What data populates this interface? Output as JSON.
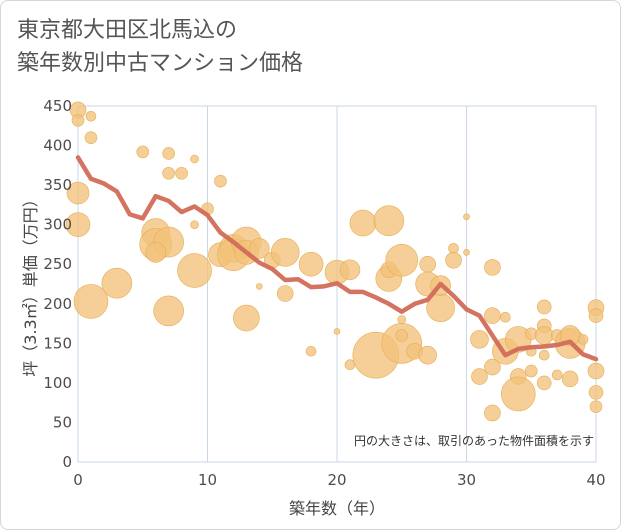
{
  "title": {
    "line1": "東京都大田区北馬込の",
    "line2": "築年数別中古マンション価格"
  },
  "chart_data": {
    "type": "scatter",
    "xlabel": "築年数（年）",
    "ylabel": "坪（3.3㎡）単価（万円）",
    "xlim": [
      0,
      40
    ],
    "ylim": [
      0,
      450
    ],
    "xticks": [
      0,
      10,
      20,
      30,
      40
    ],
    "yticks": [
      0,
      50,
      100,
      150,
      200,
      250,
      300,
      350,
      400,
      450
    ],
    "grid": true,
    "note": "円の大きさは、取引のあった物件面積を示す",
    "colors": {
      "bubble": "#f2c27a",
      "bubble_edge": "#e5ad55",
      "line": "#d26b57",
      "grid": "#cad7e6"
    },
    "bubbles": [
      {
        "x": 0,
        "y": 445,
        "size": 8
      },
      {
        "x": 0,
        "y": 432,
        "size": 6
      },
      {
        "x": 1,
        "y": 437,
        "size": 5
      },
      {
        "x": 1,
        "y": 410,
        "size": 6
      },
      {
        "x": 0,
        "y": 340,
        "size": 11
      },
      {
        "x": 0,
        "y": 300,
        "size": 12
      },
      {
        "x": 1,
        "y": 203,
        "size": 17
      },
      {
        "x": 3,
        "y": 226,
        "size": 15
      },
      {
        "x": 5,
        "y": 392,
        "size": 6
      },
      {
        "x": 7,
        "y": 390,
        "size": 6
      },
      {
        "x": 7,
        "y": 365,
        "size": 6
      },
      {
        "x": 8,
        "y": 365,
        "size": 6
      },
      {
        "x": 9,
        "y": 383,
        "size": 4
      },
      {
        "x": 6,
        "y": 290,
        "size": 14
      },
      {
        "x": 6,
        "y": 275,
        "size": 16
      },
      {
        "x": 7,
        "y": 278,
        "size": 15
      },
      {
        "x": 6,
        "y": 265,
        "size": 10
      },
      {
        "x": 7,
        "y": 191,
        "size": 15
      },
      {
        "x": 9,
        "y": 242,
        "size": 17
      },
      {
        "x": 9,
        "y": 300,
        "size": 4
      },
      {
        "x": 10,
        "y": 320,
        "size": 6
      },
      {
        "x": 11,
        "y": 355,
        "size": 6
      },
      {
        "x": 11,
        "y": 262,
        "size": 12
      },
      {
        "x": 12,
        "y": 270,
        "size": 14
      },
      {
        "x": 12,
        "y": 262,
        "size": 16
      },
      {
        "x": 13,
        "y": 278,
        "size": 15
      },
      {
        "x": 13,
        "y": 265,
        "size": 12
      },
      {
        "x": 13,
        "y": 182,
        "size": 13
      },
      {
        "x": 14,
        "y": 270,
        "size": 10
      },
      {
        "x": 14,
        "y": 222,
        "size": 3
      },
      {
        "x": 15,
        "y": 255,
        "size": 8
      },
      {
        "x": 16,
        "y": 265,
        "size": 14
      },
      {
        "x": 16,
        "y": 213,
        "size": 8
      },
      {
        "x": 18,
        "y": 250,
        "size": 12
      },
      {
        "x": 18,
        "y": 140,
        "size": 5
      },
      {
        "x": 20,
        "y": 240,
        "size": 12
      },
      {
        "x": 20,
        "y": 165,
        "size": 3
      },
      {
        "x": 21,
        "y": 243,
        "size": 10
      },
      {
        "x": 21,
        "y": 123,
        "size": 5
      },
      {
        "x": 22,
        "y": 302,
        "size": 13
      },
      {
        "x": 23,
        "y": 135,
        "size": 23
      },
      {
        "x": 24,
        "y": 305,
        "size": 15
      },
      {
        "x": 24,
        "y": 232,
        "size": 13
      },
      {
        "x": 24,
        "y": 243,
        "size": 8
      },
      {
        "x": 25,
        "y": 255,
        "size": 16
      },
      {
        "x": 25,
        "y": 150,
        "size": 20
      },
      {
        "x": 25,
        "y": 160,
        "size": 6
      },
      {
        "x": 25,
        "y": 180,
        "size": 4
      },
      {
        "x": 26,
        "y": 140,
        "size": 8
      },
      {
        "x": 27,
        "y": 250,
        "size": 8
      },
      {
        "x": 27,
        "y": 225,
        "size": 12
      },
      {
        "x": 27,
        "y": 135,
        "size": 9
      },
      {
        "x": 28,
        "y": 195,
        "size": 14
      },
      {
        "x": 28,
        "y": 223,
        "size": 10
      },
      {
        "x": 29,
        "y": 270,
        "size": 5
      },
      {
        "x": 29,
        "y": 255,
        "size": 8
      },
      {
        "x": 30,
        "y": 310,
        "size": 3
      },
      {
        "x": 30,
        "y": 265,
        "size": 3
      },
      {
        "x": 31,
        "y": 155,
        "size": 9
      },
      {
        "x": 31,
        "y": 108,
        "size": 8
      },
      {
        "x": 32,
        "y": 246,
        "size": 8
      },
      {
        "x": 32,
        "y": 185,
        "size": 8
      },
      {
        "x": 32,
        "y": 120,
        "size": 8
      },
      {
        "x": 32,
        "y": 62,
        "size": 8
      },
      {
        "x": 33,
        "y": 183,
        "size": 5
      },
      {
        "x": 33,
        "y": 140,
        "size": 13
      },
      {
        "x": 34,
        "y": 155,
        "size": 13
      },
      {
        "x": 34,
        "y": 108,
        "size": 8
      },
      {
        "x": 34,
        "y": 86,
        "size": 17
      },
      {
        "x": 35,
        "y": 162,
        "size": 6
      },
      {
        "x": 35,
        "y": 115,
        "size": 6
      },
      {
        "x": 35,
        "y": 140,
        "size": 5
      },
      {
        "x": 36,
        "y": 196,
        "size": 7
      },
      {
        "x": 36,
        "y": 172,
        "size": 7
      },
      {
        "x": 36,
        "y": 160,
        "size": 9
      },
      {
        "x": 36,
        "y": 135,
        "size": 5
      },
      {
        "x": 36,
        "y": 100,
        "size": 7
      },
      {
        "x": 37,
        "y": 160,
        "size": 6
      },
      {
        "x": 37,
        "y": 110,
        "size": 5
      },
      {
        "x": 38,
        "y": 150,
        "size": 15
      },
      {
        "x": 38,
        "y": 160,
        "size": 10
      },
      {
        "x": 38,
        "y": 105,
        "size": 8
      },
      {
        "x": 39,
        "y": 155,
        "size": 5
      },
      {
        "x": 40,
        "y": 195,
        "size": 8
      },
      {
        "x": 40,
        "y": 185,
        "size": 7
      },
      {
        "x": 40,
        "y": 115,
        "size": 8
      },
      {
        "x": 40,
        "y": 88,
        "size": 7
      },
      {
        "x": 40,
        "y": 70,
        "size": 6
      }
    ],
    "series": [
      {
        "type": "line",
        "x": [
          0,
          1,
          2,
          3,
          4,
          5,
          6,
          7,
          8,
          9,
          10,
          11,
          12,
          13,
          14,
          15,
          16,
          17,
          18,
          19,
          20,
          21,
          22,
          23,
          24,
          25,
          26,
          27,
          28,
          29,
          30,
          31,
          32,
          33,
          34,
          35,
          36,
          37,
          38,
          39,
          40
        ],
        "values": [
          385,
          358,
          352,
          342,
          313,
          308,
          336,
          330,
          316,
          323,
          312,
          290,
          278,
          265,
          252,
          244,
          230,
          231,
          221,
          222,
          226,
          215,
          215,
          208,
          200,
          190,
          200,
          205,
          225,
          210,
          193,
          185,
          160,
          135,
          143,
          145,
          146,
          148,
          152,
          136,
          130
        ]
      }
    ]
  }
}
